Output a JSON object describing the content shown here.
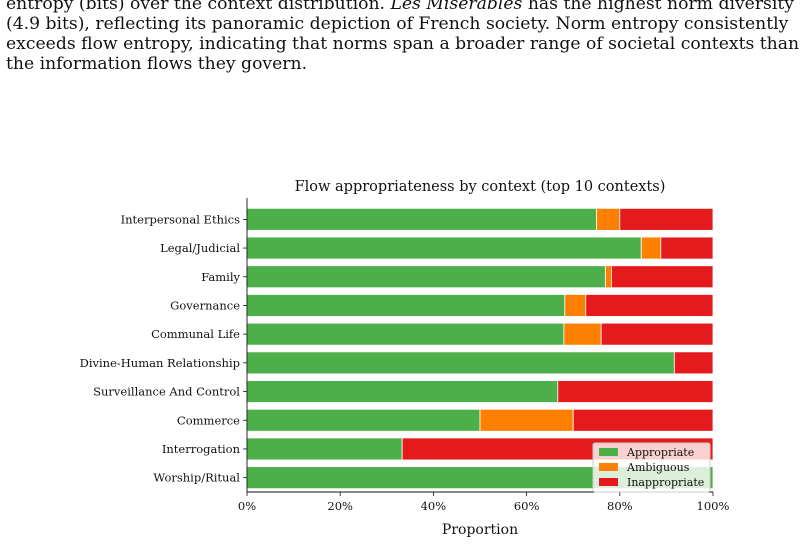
{
  "paragraph": {
    "line1_prefix": "entropy (bits) over the context distribution. ",
    "line1_title": "Les Misérables",
    "line1_suffix": " has the highest norm diversity",
    "line2": "(4.9 bits), reflecting its panoramic depiction of French society. Norm entropy consistently",
    "line3": "exceeds flow entropy, indicating that norms span a broader range of societal contexts than",
    "line4": "the information flows they govern."
  },
  "chart_data": {
    "type": "bar",
    "orientation": "horizontal",
    "stacked": true,
    "title": "Flow appropriateness by context (top 10 contexts)",
    "xlabel": "Proportion",
    "ylabel": "",
    "xlim": [
      0,
      1
    ],
    "xticks": [
      "0%",
      "20%",
      "40%",
      "60%",
      "80%",
      "100%"
    ],
    "categories": [
      "Interpersonal Ethics",
      "Legal/Judicial",
      "Family",
      "Governance",
      "Communal Life",
      "Divine-Human Relationship",
      "Surveillance And Control",
      "Commerce",
      "Interrogation",
      "Worship/Ritual"
    ],
    "series": [
      {
        "name": "Appropriate",
        "color": "#4daf4a",
        "values": [
          0.75,
          0.846,
          0.769,
          0.682,
          0.68,
          0.917,
          0.667,
          0.5,
          0.333,
          1.0
        ]
      },
      {
        "name": "Ambiguous",
        "color": "#ff7f00",
        "values": [
          0.05,
          0.042,
          0.013,
          0.045,
          0.08,
          0.0,
          0.0,
          0.2,
          0.0,
          0.0
        ]
      },
      {
        "name": "Inappropriate",
        "color": "#e41a1c",
        "values": [
          0.2,
          0.112,
          0.218,
          0.273,
          0.24,
          0.083,
          0.333,
          0.3,
          0.667,
          0.0
        ]
      }
    ],
    "legend_position": "lower-right",
    "grid": false
  }
}
